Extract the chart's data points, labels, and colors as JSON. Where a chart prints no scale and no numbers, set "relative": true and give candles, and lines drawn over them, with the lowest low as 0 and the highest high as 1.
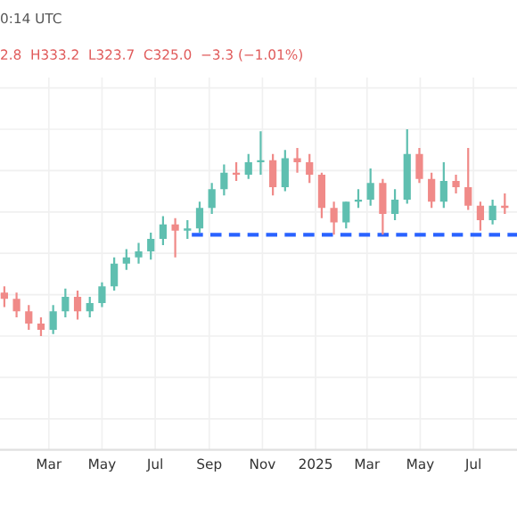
{
  "chart_data": {
    "type": "candlestick",
    "relative": true,
    "grid": true,
    "tick_labels": "x",
    "annotations": [
      "0:14 UTC",
      "2.8  H333.2  L323.7  C325.0  −3.3 (−1.01%)"
    ],
    "x": [
      "2024-01-10",
      "2024-01-24",
      "2024-02-07",
      "2024-02-21",
      "2024-03-06",
      "2024-03-20",
      "2024-04-03",
      "2024-04-17",
      "2024-05-01",
      "2024-05-15",
      "2024-05-29",
      "2024-06-12",
      "2024-06-26",
      "2024-07-10",
      "2024-07-24",
      "2024-08-07",
      "2024-08-21",
      "2024-09-04",
      "2024-09-18",
      "2024-10-02",
      "2024-10-16",
      "2024-10-30",
      "2024-11-13",
      "2024-11-27",
      "2024-12-11",
      "2024-12-25",
      "2025-01-08",
      "2025-01-22",
      "2025-02-05",
      "2025-02-19",
      "2025-03-05",
      "2025-03-19",
      "2025-04-02",
      "2025-04-16",
      "2025-04-30",
      "2025-05-14",
      "2025-05-28",
      "2025-06-11",
      "2025-06-25",
      "2025-07-09",
      "2025-07-23",
      "2025-08-06"
    ],
    "ohlc": [
      [
        0.21,
        0.24,
        0.14,
        0.18
      ],
      [
        0.18,
        0.21,
        0.09,
        0.12
      ],
      [
        0.12,
        0.15,
        0.03,
        0.06
      ],
      [
        0.06,
        0.09,
        0,
        0.03
      ],
      [
        0.03,
        0.15,
        0.01,
        0.12
      ],
      [
        0.12,
        0.23,
        0.09,
        0.19
      ],
      [
        0.19,
        0.22,
        0.08,
        0.12
      ],
      [
        0.12,
        0.19,
        0.09,
        0.16
      ],
      [
        0.16,
        0.26,
        0.14,
        0.24
      ],
      [
        0.24,
        0.38,
        0.22,
        0.35
      ],
      [
        0.35,
        0.42,
        0.32,
        0.38
      ],
      [
        0.38,
        0.45,
        0.35,
        0.41
      ],
      [
        0.41,
        0.5,
        0.37,
        0.47
      ],
      [
        0.47,
        0.58,
        0.44,
        0.54
      ],
      [
        0.54,
        0.57,
        0.38,
        0.51
      ],
      [
        0.51,
        0.56,
        0.47,
        0.52
      ],
      [
        0.52,
        0.65,
        0.5,
        0.62
      ],
      [
        0.62,
        0.74,
        0.59,
        0.71
      ],
      [
        0.71,
        0.83,
        0.68,
        0.79
      ],
      [
        0.79,
        0.84,
        0.75,
        0.78
      ],
      [
        0.78,
        0.88,
        0.76,
        0.84
      ],
      [
        0.84,
        0.99,
        0.78,
        0.85
      ],
      [
        0.85,
        0.88,
        0.68,
        0.72
      ],
      [
        0.72,
        0.9,
        0.7,
        0.86
      ],
      [
        0.86,
        0.91,
        0.79,
        0.84
      ],
      [
        0.84,
        0.88,
        0.74,
        0.78
      ],
      [
        0.78,
        0.79,
        0.57,
        0.62
      ],
      [
        0.62,
        0.65,
        0.49,
        0.55
      ],
      [
        0.55,
        0.65,
        0.52,
        0.65
      ],
      [
        0.65,
        0.71,
        0.62,
        0.66
      ],
      [
        0.66,
        0.81,
        0.63,
        0.74
      ],
      [
        0.74,
        0.76,
        0.49,
        0.59
      ],
      [
        0.59,
        0.71,
        0.56,
        0.66
      ],
      [
        0.66,
        1,
        0.64,
        0.88
      ],
      [
        0.88,
        0.91,
        0.74,
        0.76
      ],
      [
        0.76,
        0.79,
        0.62,
        0.65
      ],
      [
        0.65,
        0.84,
        0.62,
        0.75
      ],
      [
        0.75,
        0.78,
        0.69,
        0.72
      ],
      [
        0.72,
        0.91,
        0.61,
        0.63
      ],
      [
        0.63,
        0.65,
        0.51,
        0.56
      ],
      [
        0.56,
        0.66,
        0.54,
        0.63
      ],
      [
        0.63,
        0.69,
        0.59,
        0.62
      ]
    ],
    "colors": [
      "#f08a88",
      "#f08a88",
      "#f08a88",
      "#f08a88",
      "#5fbfb0",
      "#5fbfb0",
      "#f08a88",
      "#5fbfb0",
      "#5fbfb0",
      "#5fbfb0",
      "#5fbfb0",
      "#5fbfb0",
      "#5fbfb0",
      "#5fbfb0",
      "#f08a88",
      "#5fbfb0",
      "#5fbfb0",
      "#5fbfb0",
      "#5fbfb0",
      "#f08a88",
      "#5fbfb0",
      "#5fbfb0",
      "#f08a88",
      "#5fbfb0",
      "#f08a88",
      "#f08a88",
      "#f08a88",
      "#f08a88",
      "#5fbfb0",
      "#5fbfb0",
      "#5fbfb0",
      "#f08a88",
      "#5fbfb0",
      "#5fbfb0",
      "#f08a88",
      "#f08a88",
      "#5fbfb0",
      "#f08a88",
      "#f08a88",
      "#f08a88",
      "#5fbfb0",
      "#f08a88"
    ],
    "series": [
      {
        "type": "line",
        "color": "#2962ff",
        "line_style": "dashed",
        "x": [
          "2024-08-12",
          "2025-08-20"
        ],
        "values": [
          0.49,
          0.49
        ]
      }
    ],
    "xlim": [
      "2024-01-05",
      "2025-08-20"
    ],
    "xticks": [
      {
        "value": "2024-03-01",
        "label": "Mar"
      },
      {
        "value": "2024-05-01",
        "label": "May"
      },
      {
        "value": "2024-07-01",
        "label": "Jul"
      },
      {
        "value": "2024-09-01",
        "label": "Sep"
      },
      {
        "value": "2024-11-01",
        "label": "Nov"
      },
      {
        "value": "2025-01-01",
        "label": "2025"
      },
      {
        "value": "2025-03-01",
        "label": "Mar"
      },
      {
        "value": "2025-05-01",
        "label": "May"
      },
      {
        "value": "2025-07-01",
        "label": "Jul"
      }
    ]
  }
}
